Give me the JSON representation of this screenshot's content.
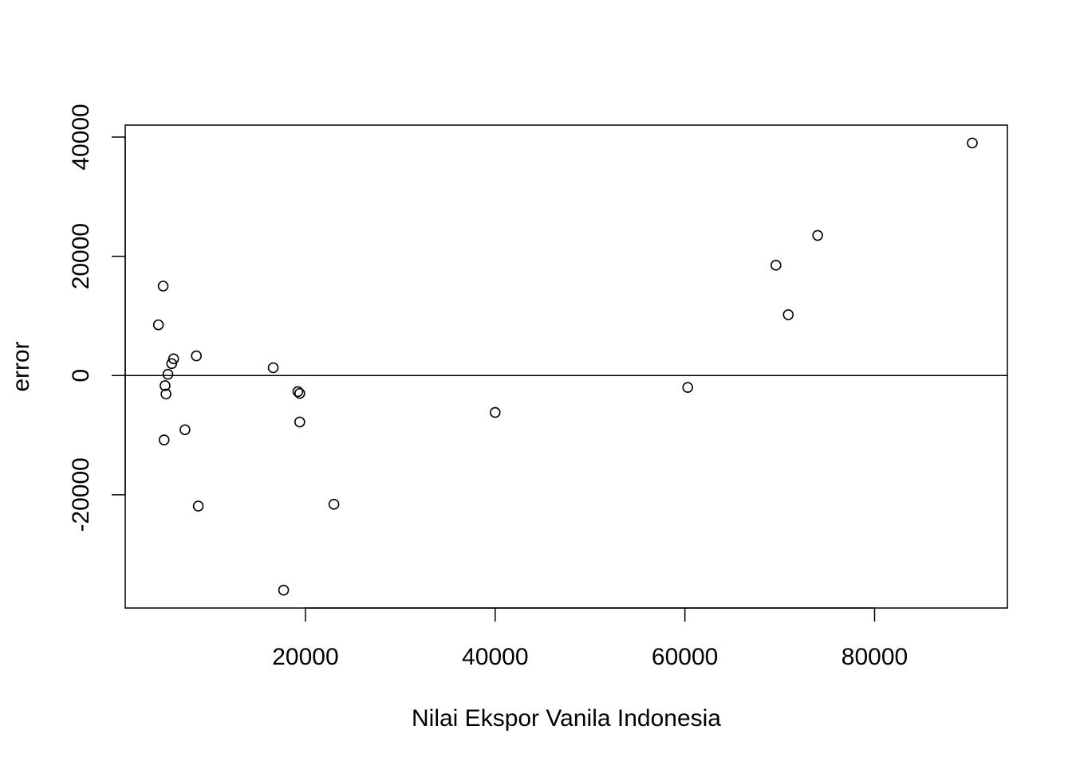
{
  "chart_data": {
    "type": "scatter",
    "title": "",
    "xlabel": "Nilai Ekspor Vanila Indonesia",
    "ylabel": "error",
    "xlim": [
      1000,
      94000
    ],
    "ylim": [
      -39000,
      42000
    ],
    "x_ticks": [
      20000,
      40000,
      60000,
      80000
    ],
    "x_tick_labels": [
      "20000",
      "40000",
      "60000",
      "80000"
    ],
    "y_ticks": [
      -20000,
      0,
      20000,
      40000
    ],
    "y_tick_labels": [
      "-20000",
      "0",
      "20000",
      "40000"
    ],
    "reference_line_y": 0,
    "grid": false,
    "marker": "open-circle",
    "points": [
      {
        "x": 4500,
        "y": 8500
      },
      {
        "x": 5000,
        "y": 15000
      },
      {
        "x": 5100,
        "y": -10800
      },
      {
        "x": 5200,
        "y": -1700
      },
      {
        "x": 5300,
        "y": -3100
      },
      {
        "x": 5500,
        "y": 200
      },
      {
        "x": 5900,
        "y": 2000
      },
      {
        "x": 6100,
        "y": 2800
      },
      {
        "x": 7300,
        "y": -9100
      },
      {
        "x": 8500,
        "y": 3300
      },
      {
        "x": 8700,
        "y": -21900
      },
      {
        "x": 16600,
        "y": 1300
      },
      {
        "x": 17700,
        "y": -36000
      },
      {
        "x": 19200,
        "y": -2700
      },
      {
        "x": 19400,
        "y": -3000
      },
      {
        "x": 19400,
        "y": -7800
      },
      {
        "x": 23000,
        "y": -21600
      },
      {
        "x": 40000,
        "y": -6200
      },
      {
        "x": 60300,
        "y": -2000
      },
      {
        "x": 69600,
        "y": 18500
      },
      {
        "x": 70900,
        "y": 10200
      },
      {
        "x": 74000,
        "y": 23500
      },
      {
        "x": 90300,
        "y": 39000
      }
    ]
  }
}
